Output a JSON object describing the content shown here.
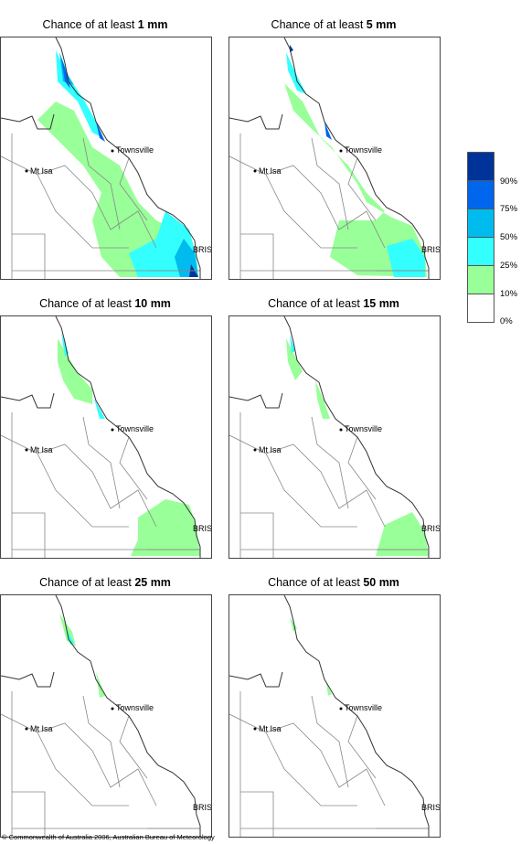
{
  "panels": [
    {
      "prefix": "Chance of at least ",
      "amount": "1 mm"
    },
    {
      "prefix": "Chance of at least ",
      "amount": "5 mm"
    },
    {
      "prefix": "Chance of at least ",
      "amount": "10 mm"
    },
    {
      "prefix": "Chance of at least ",
      "amount": "15 mm"
    },
    {
      "prefix": "Chance of at least ",
      "amount": "25 mm"
    },
    {
      "prefix": "Chance of at least ",
      "amount": "50 mm"
    }
  ],
  "places": {
    "townsville": "Townsville",
    "mt_isa": "Mt Isa",
    "brisbane": "BRIS"
  },
  "legend": {
    "labels": [
      "90%",
      "75%",
      "50%",
      "25%",
      "10%",
      "0%"
    ],
    "colors": [
      "#003399",
      "#0066ee",
      "#00bbee",
      "#33ffff",
      "#99ff99",
      "#ffffff"
    ]
  },
  "colors": {
    "green": "#99ff99",
    "cyan": "#33ffff",
    "sky": "#00bbee",
    "blue": "#0066ee",
    "navy": "#003399"
  },
  "copyright": "© Commonwealth of Australia 2006, Australian Bureau of Meteorology"
}
